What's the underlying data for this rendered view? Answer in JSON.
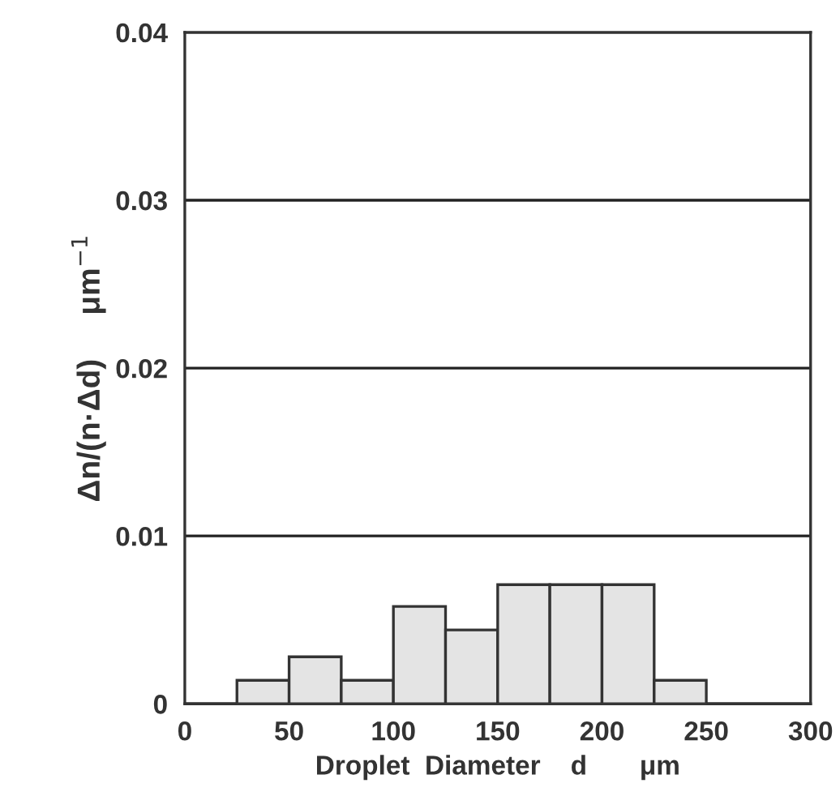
{
  "chart_data": {
    "type": "histogram",
    "xlabel": "Droplet  Diameter    d       μm",
    "ylabel": "Δn/(n·Δd)     μm$^{−1}$",
    "bins": [
      25,
      50,
      75,
      100,
      125,
      150,
      175,
      200,
      225,
      250
    ],
    "values": [
      0.0014,
      0.0028,
      0.0014,
      0.0058,
      0.0044,
      0.0071,
      0.0071,
      0.0071,
      0.0014
    ],
    "color": "#e4e4e4",
    "xlim": [
      0,
      300
    ],
    "xticks": [
      0,
      50,
      100,
      150,
      200,
      250,
      300
    ],
    "ylim": [
      0,
      0.04
    ],
    "yticks": [
      0,
      0.01,
      0.02,
      0.03,
      0.04
    ],
    "grid": "y"
  }
}
